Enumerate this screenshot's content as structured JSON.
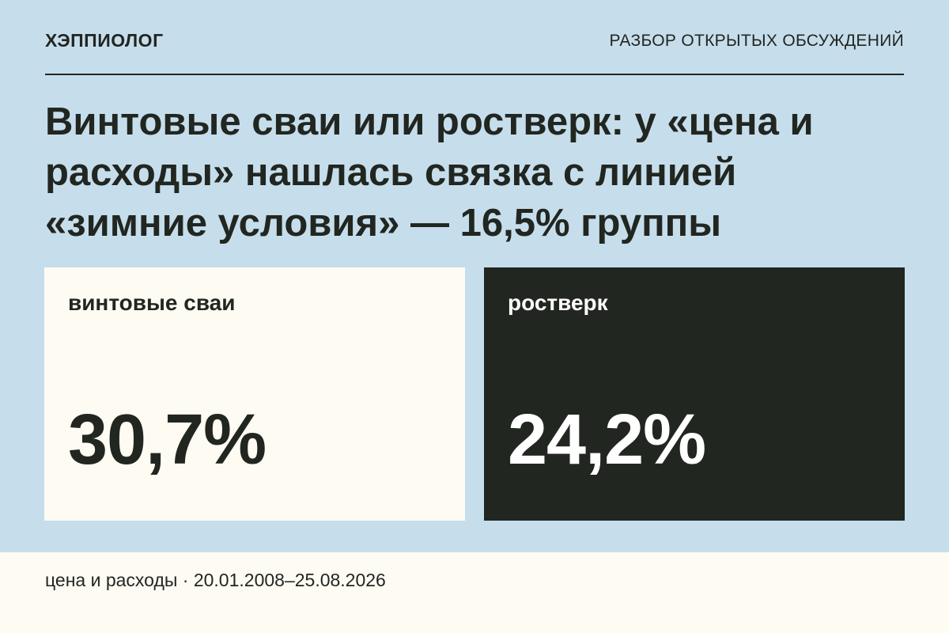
{
  "header": {
    "brand": "ХЭППИОЛОГ",
    "section": "РАЗБОР ОТКРЫТЫХ ОБСУЖДЕНИЙ"
  },
  "headline": "Винтовые сваи или ростверк: у «цена и расходы» нашлась связка с линией «зимние условия» — 16,5% группы",
  "cards": [
    {
      "label": "винтовые сваи",
      "value": "30,7%"
    },
    {
      "label": "ростверк",
      "value": "24,2%"
    }
  ],
  "footer": {
    "caption": "цена и расходы · 20.01.2008–25.08.2026"
  },
  "colors": {
    "background": "#c6deec",
    "card_light": "#fefbf3",
    "card_dark": "#222620",
    "text_dark": "#222620",
    "text_light": "#ffffff"
  }
}
